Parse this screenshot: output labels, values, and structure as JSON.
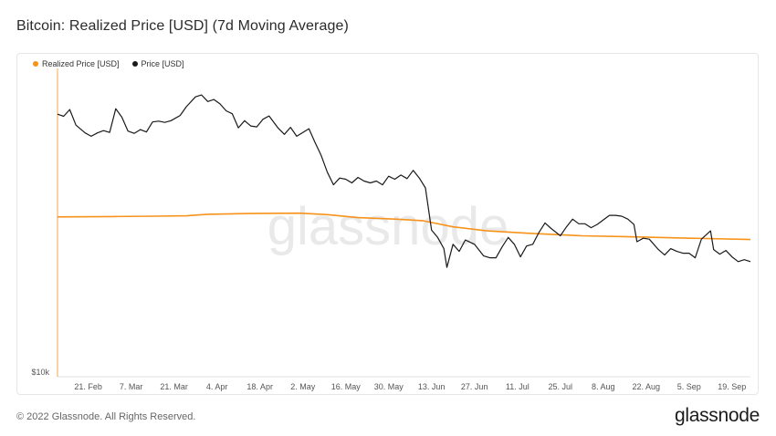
{
  "title": "Bitcoin: Realized Price [USD] (7d Moving Average)",
  "watermark": "glassnode",
  "footer": {
    "copyright": "© 2022 Glassnode. All Rights Reserved.",
    "brand": "glassnode"
  },
  "chart_data": {
    "type": "line",
    "x_ticks": [
      "21. Feb",
      "7. Mar",
      "21. Mar",
      "4. Apr",
      "18. Apr",
      "2. May",
      "16. May",
      "30. May",
      "13. Jun",
      "27. Jun",
      "11. Jul",
      "25. Jul",
      "8. Aug",
      "22. Aug",
      "5. Sep",
      "19. Sep"
    ],
    "y_ticks": [
      "$10k"
    ],
    "y_scale": "log",
    "ylim": [
      10000,
      55000
    ],
    "grid": false,
    "legend_position": "top-left",
    "x_range": [
      "2022-02-11",
      "2022-09-25"
    ],
    "series": [
      {
        "name": "Realized Price [USD]",
        "color": "#f7931a",
        "values": [
          [
            "2022-02-11",
            24200
          ],
          [
            "2022-03-01",
            24250
          ],
          [
            "2022-03-15",
            24300
          ],
          [
            "2022-03-25",
            24350
          ],
          [
            "2022-04-01",
            24550
          ],
          [
            "2022-04-15",
            24650
          ],
          [
            "2022-05-01",
            24700
          ],
          [
            "2022-05-10",
            24500
          ],
          [
            "2022-05-20",
            24100
          ],
          [
            "2022-06-01",
            23900
          ],
          [
            "2022-06-10",
            23700
          ],
          [
            "2022-06-20",
            22900
          ],
          [
            "2022-07-01",
            22400
          ],
          [
            "2022-07-15",
            22100
          ],
          [
            "2022-08-01",
            21800
          ],
          [
            "2022-08-15",
            21700
          ],
          [
            "2022-09-01",
            21550
          ],
          [
            "2022-09-25",
            21350
          ]
        ]
      },
      {
        "name": "Price [USD]",
        "color": "#1a1a1a",
        "values": [
          [
            "2022-02-11",
            42700
          ],
          [
            "2022-02-13",
            42200
          ],
          [
            "2022-02-15",
            43800
          ],
          [
            "2022-02-17",
            40200
          ],
          [
            "2022-02-20",
            38500
          ],
          [
            "2022-02-22",
            37800
          ],
          [
            "2022-02-24",
            38500
          ],
          [
            "2022-02-26",
            39000
          ],
          [
            "2022-02-28",
            38600
          ],
          [
            "2022-03-02",
            44000
          ],
          [
            "2022-03-04",
            42000
          ],
          [
            "2022-03-06",
            38900
          ],
          [
            "2022-03-08",
            38400
          ],
          [
            "2022-03-10",
            39200
          ],
          [
            "2022-03-12",
            38700
          ],
          [
            "2022-03-14",
            40900
          ],
          [
            "2022-03-16",
            41100
          ],
          [
            "2022-03-18",
            40800
          ],
          [
            "2022-03-20",
            41200
          ],
          [
            "2022-03-23",
            42400
          ],
          [
            "2022-03-25",
            44500
          ],
          [
            "2022-03-28",
            47000
          ],
          [
            "2022-03-30",
            47500
          ],
          [
            "2022-04-01",
            45800
          ],
          [
            "2022-04-03",
            46300
          ],
          [
            "2022-04-05",
            45200
          ],
          [
            "2022-04-07",
            43500
          ],
          [
            "2022-04-09",
            42800
          ],
          [
            "2022-04-11",
            39600
          ],
          [
            "2022-04-13",
            41200
          ],
          [
            "2022-04-15",
            40000
          ],
          [
            "2022-04-17",
            39800
          ],
          [
            "2022-04-19",
            41500
          ],
          [
            "2022-04-21",
            42300
          ],
          [
            "2022-04-24",
            39500
          ],
          [
            "2022-04-26",
            38200
          ],
          [
            "2022-04-28",
            39700
          ],
          [
            "2022-04-30",
            37800
          ],
          [
            "2022-05-02",
            38600
          ],
          [
            "2022-05-04",
            39400
          ],
          [
            "2022-05-06",
            36500
          ],
          [
            "2022-05-08",
            34000
          ],
          [
            "2022-05-10",
            31000
          ],
          [
            "2022-05-12",
            28900
          ],
          [
            "2022-05-14",
            30000
          ],
          [
            "2022-05-16",
            29800
          ],
          [
            "2022-05-18",
            29200
          ],
          [
            "2022-05-20",
            30100
          ],
          [
            "2022-05-22",
            29500
          ],
          [
            "2022-05-24",
            29200
          ],
          [
            "2022-05-26",
            29500
          ],
          [
            "2022-05-28",
            28900
          ],
          [
            "2022-05-30",
            30300
          ],
          [
            "2022-06-01",
            29800
          ],
          [
            "2022-06-03",
            30500
          ],
          [
            "2022-06-05",
            29900
          ],
          [
            "2022-06-07",
            31300
          ],
          [
            "2022-06-09",
            30000
          ],
          [
            "2022-06-11",
            28400
          ],
          [
            "2022-06-13",
            22500
          ],
          [
            "2022-06-15",
            21600
          ],
          [
            "2022-06-17",
            20300
          ],
          [
            "2022-06-18",
            18300
          ],
          [
            "2022-06-20",
            20800
          ],
          [
            "2022-06-22",
            20000
          ],
          [
            "2022-06-24",
            21300
          ],
          [
            "2022-06-27",
            20800
          ],
          [
            "2022-06-30",
            19500
          ],
          [
            "2022-07-02",
            19300
          ],
          [
            "2022-07-04",
            19300
          ],
          [
            "2022-07-06",
            20500
          ],
          [
            "2022-07-08",
            21600
          ],
          [
            "2022-07-10",
            20800
          ],
          [
            "2022-07-12",
            19400
          ],
          [
            "2022-07-14",
            20600
          ],
          [
            "2022-07-16",
            20800
          ],
          [
            "2022-07-18",
            22200
          ],
          [
            "2022-07-20",
            23400
          ],
          [
            "2022-07-22",
            22700
          ],
          [
            "2022-07-25",
            21800
          ],
          [
            "2022-07-27",
            22900
          ],
          [
            "2022-07-29",
            23900
          ],
          [
            "2022-07-31",
            23300
          ],
          [
            "2022-08-02",
            23300
          ],
          [
            "2022-08-04",
            22800
          ],
          [
            "2022-08-06",
            23200
          ],
          [
            "2022-08-08",
            23800
          ],
          [
            "2022-08-10",
            24400
          ],
          [
            "2022-08-12",
            24400
          ],
          [
            "2022-08-14",
            24300
          ],
          [
            "2022-08-16",
            23900
          ],
          [
            "2022-08-18",
            23200
          ],
          [
            "2022-08-19",
            21100
          ],
          [
            "2022-08-21",
            21500
          ],
          [
            "2022-08-23",
            21400
          ],
          [
            "2022-08-26",
            20200
          ],
          [
            "2022-08-28",
            19600
          ],
          [
            "2022-08-30",
            20300
          ],
          [
            "2022-09-01",
            20000
          ],
          [
            "2022-09-03",
            19800
          ],
          [
            "2022-09-05",
            19800
          ],
          [
            "2022-09-07",
            19300
          ],
          [
            "2022-09-09",
            21400
          ],
          [
            "2022-09-12",
            22400
          ],
          [
            "2022-09-13",
            20200
          ],
          [
            "2022-09-15",
            19700
          ],
          [
            "2022-09-17",
            20100
          ],
          [
            "2022-09-19",
            19400
          ],
          [
            "2022-09-21",
            18900
          ],
          [
            "2022-09-23",
            19100
          ],
          [
            "2022-09-25",
            18900
          ]
        ]
      }
    ]
  }
}
